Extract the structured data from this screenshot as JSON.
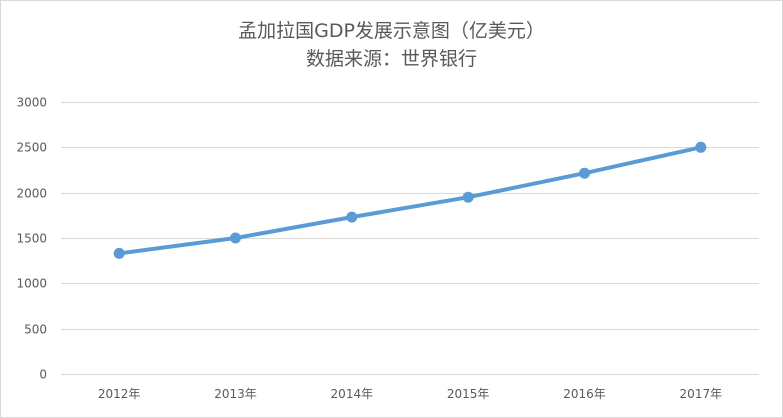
{
  "chart_data": {
    "type": "line",
    "title": "孟加拉国GDP发展示意图（亿美元）",
    "subtitle": "数据来源：世界银行",
    "categories": [
      "2012年",
      "2013年",
      "2014年",
      "2015年",
      "2016年",
      "2017年"
    ],
    "series": [
      {
        "values": [
          1330,
          1500,
          1730,
          1950,
          2215,
          2500
        ],
        "color": "#5b9bd5"
      }
    ],
    "ylim": [
      0,
      3000
    ],
    "yticks": [
      0,
      500,
      1000,
      1500,
      2000,
      2500,
      3000
    ],
    "grid": true,
    "legend": "none",
    "markers": true
  }
}
